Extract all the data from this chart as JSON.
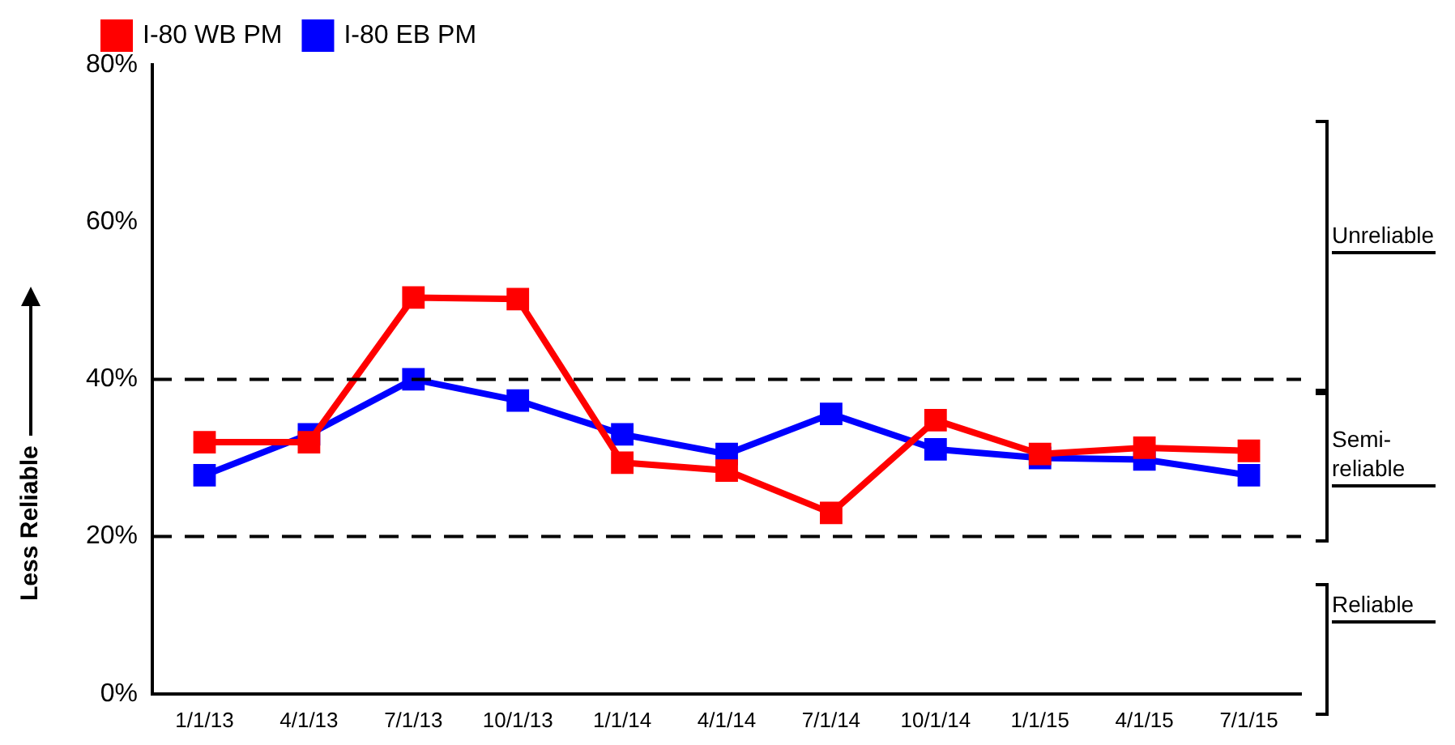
{
  "chart_data": {
    "type": "line",
    "ylabel": "Less Reliable",
    "categories": [
      "1/1/13",
      "4/1/13",
      "7/1/13",
      "10/1/13",
      "1/1/14",
      "4/1/14",
      "7/1/14",
      "10/1/14",
      "1/1/15",
      "4/1/15",
      "7/1/15"
    ],
    "series": [
      {
        "name": "I-80 WB PM",
        "color": "#ff0000",
        "values": [
          32,
          32,
          50.4,
          50.2,
          29.4,
          28.4,
          23,
          34.8,
          30.5,
          31.3,
          30.9
        ]
      },
      {
        "name": "I-80 EB PM",
        "color": "#0000ff",
        "values": [
          27.8,
          33,
          40,
          37.3,
          33,
          30.5,
          35.6,
          31.1,
          30,
          29.8,
          27.8
        ]
      }
    ],
    "ylim": [
      0,
      80
    ],
    "yticks": [
      {
        "value": 0,
        "label": "0%"
      },
      {
        "value": 20,
        "label": "20%"
      },
      {
        "value": 40,
        "label": "40%"
      },
      {
        "value": 60,
        "label": "60%"
      },
      {
        "value": 80,
        "label": "80%"
      }
    ],
    "ref_lines": [
      {
        "axis": "y",
        "value": 40,
        "color": "#000000",
        "line_style": "dashed"
      },
      {
        "axis": "y",
        "value": 20,
        "color": "#000000",
        "line_style": "dashed"
      }
    ],
    "annotations": [
      "Unreliable",
      "Semi-reliable",
      "Reliable"
    ],
    "grid": false,
    "legend": "top left",
    "marker": "square",
    "line_style": "solid"
  }
}
